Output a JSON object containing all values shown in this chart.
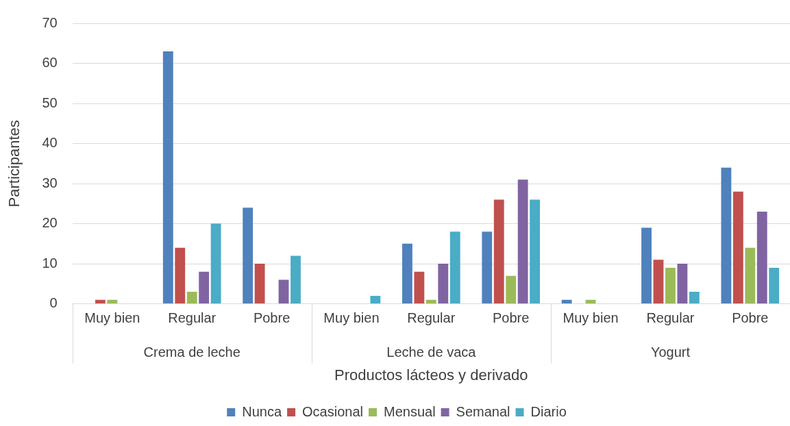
{
  "chart_data": {
    "type": "bar",
    "xlabel": "Productos lácteos y derivado",
    "ylabel": "Participantes",
    "categories": [
      "Muy bien",
      "Regular",
      "Pobre",
      "Muy bien",
      "Regular",
      "Pobre",
      "Muy bien",
      "Regular",
      "Pobre"
    ],
    "annotations": [
      "Crema de leche",
      "Leche de vaca",
      "Yogurt"
    ],
    "series": [
      {
        "name": "Nunca",
        "color": "#4f81bd",
        "values": [
          0,
          63,
          24,
          0,
          15,
          18,
          1,
          19,
          34
        ]
      },
      {
        "name": "Ocasional",
        "color": "#c0504d",
        "values": [
          1,
          14,
          10,
          0,
          8,
          26,
          0,
          11,
          28
        ]
      },
      {
        "name": "Mensual",
        "color": "#9bbb59",
        "values": [
          1,
          3,
          0,
          0,
          1,
          7,
          1,
          9,
          14
        ]
      },
      {
        "name": "Semanal",
        "color": "#8064a2",
        "values": [
          0,
          8,
          6,
          0,
          10,
          31,
          0,
          10,
          23
        ]
      },
      {
        "name": "Diario",
        "color": "#4bacc6",
        "values": [
          0,
          20,
          12,
          2,
          18,
          26,
          0,
          3,
          9
        ]
      }
    ],
    "ylim": [
      0,
      70
    ],
    "yticks": [
      0,
      10,
      20,
      30,
      40,
      50,
      60,
      70
    ],
    "grid": "y",
    "legend": "bottom"
  }
}
